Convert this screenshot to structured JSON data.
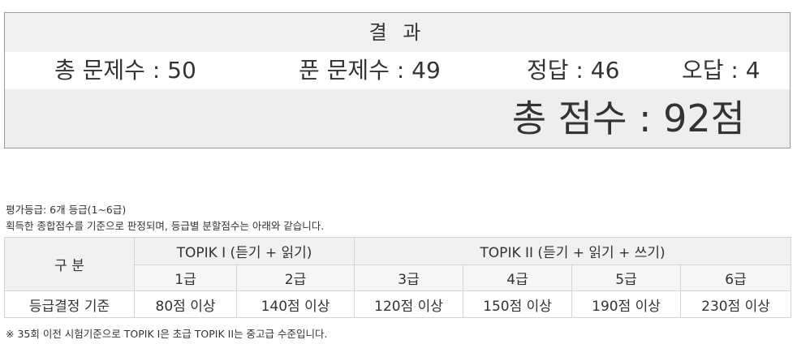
{
  "result": {
    "title": "결 과",
    "total_questions": "총 문제수 : 50",
    "solved_questions": "푼 문제수 : 49",
    "correct": "정답 : 46",
    "wrong": "오답 : 4",
    "score": "총 점수 : 92점"
  },
  "info": {
    "line1": "평가등급: 6개 등급(1~6급)",
    "line2": "획득한 종합점수를 기준으로 판정되며, 등급별 분할점수는 아래와 같습니다."
  },
  "grade_table": {
    "category_header": "구 분",
    "topik1_header": "TOPIK I (듣기 + 읽기)",
    "topik2_header": "TOPIK II (듣기 + 읽기 + 쓰기)",
    "levels": [
      "1급",
      "2급",
      "3급",
      "4급",
      "5급",
      "6급"
    ],
    "criteria_label": "등급결정 기준",
    "criteria": [
      "80점 이상",
      "140점 이상",
      "120점 이상",
      "150점 이상",
      "190점 이상",
      "230점 이상"
    ]
  },
  "footnote": "※ 35회 이전 시험기준으로 TOPIK I은 초급 TOPIK II는 중고급 수준입니다."
}
